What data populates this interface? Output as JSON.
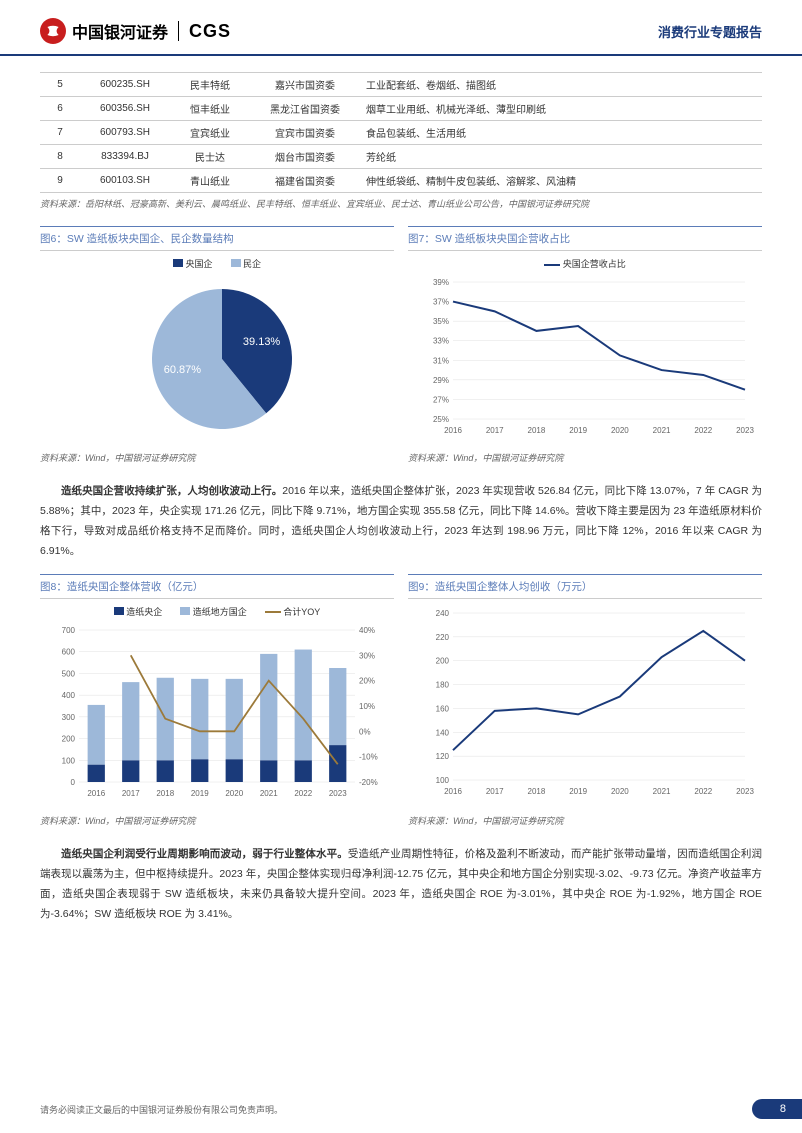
{
  "header": {
    "company_cn": "中国银河证券",
    "company_en": "CGS",
    "report_type": "消费行业专题报告"
  },
  "top_table": {
    "rows": [
      [
        "5",
        "600235.SH",
        "民丰特纸",
        "嘉兴市国资委",
        "工业配套纸、卷烟纸、描图纸"
      ],
      [
        "6",
        "600356.SH",
        "恒丰纸业",
        "黑龙江省国资委",
        "烟草工业用纸、机械光泽纸、薄型印刷纸"
      ],
      [
        "7",
        "600793.SH",
        "宜宾纸业",
        "宜宾市国资委",
        "食品包装纸、生活用纸"
      ],
      [
        "8",
        "833394.BJ",
        "民士达",
        "烟台市国资委",
        "芳纶纸"
      ],
      [
        "9",
        "600103.SH",
        "青山纸业",
        "福建省国资委",
        "伸性纸袋纸、精制牛皮包装纸、溶解浆、风油精"
      ]
    ],
    "source": "资料来源：岳阳林纸、冠豪高新、美利云、晨鸣纸业、民丰特纸、恒丰纸业、宜宾纸业、民士达、青山纸业公司公告，中国银河证券研究院"
  },
  "chart6": {
    "title": "图6：SW 造纸板块央国企、民企数量结构",
    "type": "pie",
    "legend": [
      "央国企",
      "民企"
    ],
    "slices": [
      {
        "label": "39.13%",
        "value": 39.13,
        "color": "#1a3a7a"
      },
      {
        "label": "60.87%",
        "value": 60.87,
        "color": "#9db8d9"
      }
    ],
    "source": "资料来源：Wind，中国银河证券研究院"
  },
  "chart7": {
    "title": "图7：SW 造纸板块央国企营收占比",
    "type": "line",
    "series_name": "央国企营收占比",
    "color": "#1a3a7a",
    "years": [
      "2016",
      "2017",
      "2018",
      "2019",
      "2020",
      "2021",
      "2022",
      "2023"
    ],
    "values": [
      37,
      36,
      34,
      34.5,
      31.5,
      30,
      29.5,
      28
    ],
    "yticks": [
      "25%",
      "27%",
      "29%",
      "31%",
      "33%",
      "35%",
      "37%",
      "39%"
    ],
    "ymin": 25,
    "ymax": 39,
    "grid_color": "#e0e0e0",
    "source": "资料来源：Wind，中国银河证券研究院"
  },
  "para1": {
    "bold": "造纸央国企营收持续扩张，人均创收波动上行。",
    "rest": "2016 年以来，造纸央国企整体扩张，2023 年实现营收 526.84 亿元，同比下降 13.07%，7 年 CAGR 为 5.88%；其中，2023 年，央企实现 171.26 亿元，同比下降 9.71%，地方国企实现 355.58 亿元，同比下降 14.6%。营收下降主要是因为 23 年造纸原材料价格下行，导致对成品纸价格支持不足而降价。同时，造纸央国企人均创收波动上行，2023 年达到 198.96 万元，同比下降 12%，2016 年以来 CAGR 为 6.91%。"
  },
  "chart8": {
    "title": "图8：造纸央国企整体营收（亿元）",
    "type": "bar+line",
    "legend": [
      {
        "name": "造纸央企",
        "color": "#1a3a7a",
        "kind": "bar"
      },
      {
        "name": "造纸地方国企",
        "color": "#9db8d9",
        "kind": "bar"
      },
      {
        "name": "合计YOY",
        "color": "#9c7a3a",
        "kind": "line"
      }
    ],
    "years": [
      "2016",
      "2017",
      "2018",
      "2019",
      "2020",
      "2021",
      "2022",
      "2023"
    ],
    "bar1": [
      80,
      100,
      100,
      105,
      105,
      100,
      100,
      170
    ],
    "bar2": [
      275,
      360,
      380,
      370,
      370,
      490,
      510,
      355
    ],
    "yoy": [
      null,
      30,
      5,
      0,
      0,
      20,
      5,
      -13
    ],
    "yleft": {
      "min": 0,
      "max": 700,
      "step": 100
    },
    "yright": {
      "min": -20,
      "max": 40,
      "step": 10,
      "suffix": "%"
    },
    "grid_color": "#e0e0e0",
    "source": "资料来源：Wind，中国银河证券研究院"
  },
  "chart9": {
    "title": "图9：造纸央国企整体人均创收（万元）",
    "type": "line",
    "color": "#1a3a7a",
    "years": [
      "2016",
      "2017",
      "2018",
      "2019",
      "2020",
      "2021",
      "2022",
      "2023"
    ],
    "values": [
      125,
      158,
      160,
      155,
      170,
      203,
      225,
      200
    ],
    "yticks": [
      "100",
      "120",
      "140",
      "160",
      "180",
      "200",
      "220",
      "240"
    ],
    "ymin": 100,
    "ymax": 240,
    "grid_color": "#e0e0e0",
    "source": "资料来源：Wind，中国银河证券研究院"
  },
  "para2": {
    "bold": "造纸央国企利润受行业周期影响而波动，弱于行业整体水平。",
    "rest": "受造纸产业周期性特征，价格及盈利不断波动，而产能扩张带动量增，因而造纸国企利润端表现以震荡为主，但中枢持续提升。2023 年，央国企整体实现归母净利润-12.75 亿元，其中央企和地方国企分别实现-3.02、-9.73 亿元。净资产收益率方面，造纸央国企表现弱于 SW 造纸板块，未来仍具备较大提升空间。2023 年，造纸央国企 ROE 为-3.01%，其中央企 ROE 为-1.92%，地方国企 ROE 为-3.64%；SW 造纸板块 ROE 为 3.41%。"
  },
  "footer": {
    "disclaimer": "请务必阅读正文最后的中国银河证券股份有限公司免责声明。",
    "page": "8"
  }
}
